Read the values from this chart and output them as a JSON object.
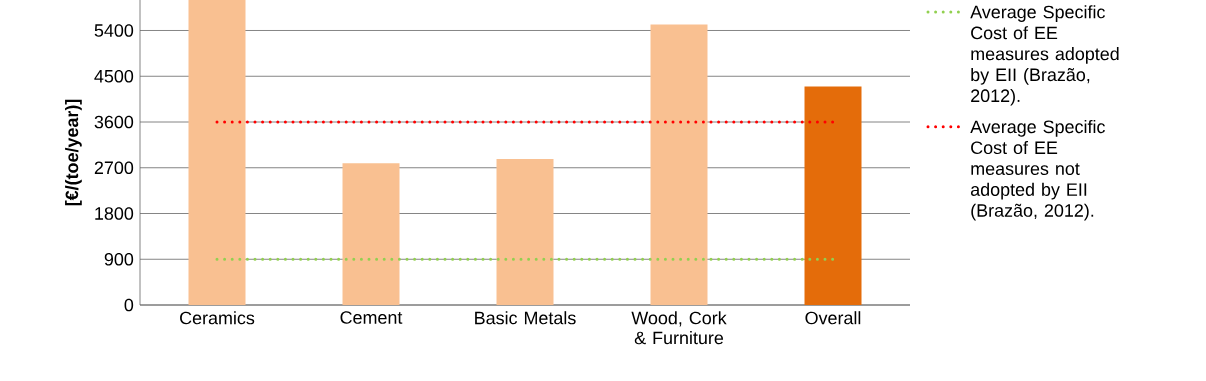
{
  "chart_data": {
    "type": "bar",
    "ylabel": "[€/(toe/year)]",
    "categories": [
      "Ceramics",
      "Cement",
      "Basic Metals",
      "Wood, Cork & Furniture",
      "Overall"
    ],
    "ylim": [
      0,
      6000
    ],
    "yticks": [
      0,
      900,
      1800,
      2700,
      3600,
      4500,
      5400
    ],
    "grid": "y",
    "legend": "right",
    "marker": "none",
    "series": [
      {
        "colors": [
          "#f9c091",
          "#f9c091",
          "#f9c091",
          "#f9c091",
          "#e46c0a"
        ],
        "values": [
          6000,
          2790,
          2870,
          5520,
          4300
        ]
      },
      {
        "type": "line",
        "name": "Average Specific Cost of EE measures adopted by EII (Brazão, 2012).",
        "color": "#92d050",
        "line_style": "dotted",
        "values": [
          900,
          900,
          900,
          900,
          900
        ]
      },
      {
        "type": "line",
        "name": "Average Specific Cost of EE measures not adopted by EII (Brazão, 2012).",
        "color": "#ff0000",
        "line_style": "dotted",
        "values": [
          3600,
          3600,
          3600,
          3600,
          3600
        ]
      }
    ]
  }
}
